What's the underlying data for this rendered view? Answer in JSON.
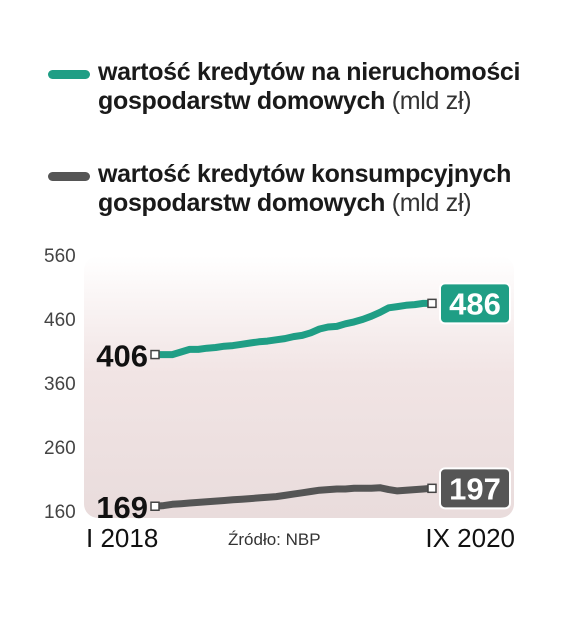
{
  "legend": [
    {
      "bold": "wartość kredytów na nieruchomości gospodarstw domowych",
      "unit": "(mld zł)",
      "color": "#1f9e85"
    },
    {
      "bold": "wartość kredytów konsumpcyjnych gospodarstw domowych",
      "unit": "(mld zł)",
      "color": "#555555"
    }
  ],
  "source": "Źródło: NBP",
  "chart_data": {
    "type": "line",
    "x_start_label": "I 2018",
    "x_end_label": "IX 2020",
    "y_ticks": [
      "560",
      "460",
      "360",
      "260",
      "160"
    ],
    "ylim": [
      160,
      560
    ],
    "grid": false,
    "series": [
      {
        "name": "wartość kredytów na nieruchomości gospodarstw domowych",
        "color": "#1f9e85",
        "start_label": "406",
        "end_label": "486",
        "values": [
          406,
          406,
          406,
          410,
          414,
          414,
          416,
          417,
          419,
          420,
          422,
          424,
          426,
          427,
          429,
          431,
          434,
          436,
          440,
          446,
          449,
          450,
          454,
          457,
          461,
          466,
          472,
          479,
          481,
          483,
          484,
          486,
          486
        ]
      },
      {
        "name": "wartość kredytów konsumpcyjnych gospodarstw domowych",
        "color": "#555555",
        "start_label": "169",
        "end_label": "197",
        "values": [
          169,
          170,
          172,
          173,
          174,
          175,
          176,
          177,
          178,
          179,
          180,
          181,
          182,
          183,
          184,
          186,
          188,
          190,
          192,
          194,
          195,
          196,
          196,
          197,
          197,
          197,
          198,
          195,
          193,
          194,
          195,
          196,
          197
        ]
      }
    ]
  }
}
